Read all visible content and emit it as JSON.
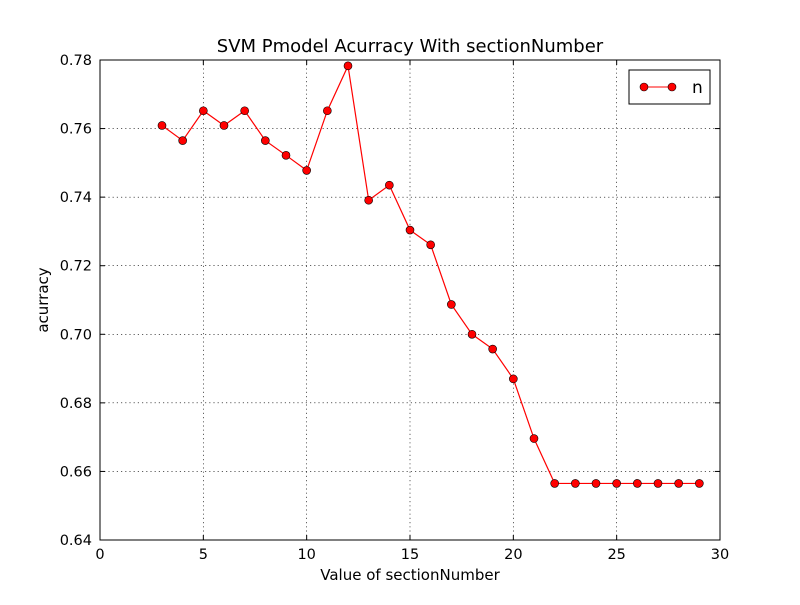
{
  "chart_data": {
    "type": "line",
    "title": "SVM Pmodel Acurracy With sectionNumber",
    "xlabel": "Value of sectionNumber",
    "ylabel": "acurracy",
    "xlim": [
      0,
      30
    ],
    "ylim": [
      0.64,
      0.78
    ],
    "xticks": [
      0,
      5,
      10,
      15,
      20,
      25,
      30
    ],
    "xtick_labels": [
      "0",
      "5",
      "10",
      "15",
      "20",
      "25",
      "30"
    ],
    "yticks": [
      0.64,
      0.66,
      0.68,
      0.7,
      0.72,
      0.74,
      0.76,
      0.78
    ],
    "ytick_labels": [
      "0.64",
      "0.66",
      "0.68",
      "0.70",
      "0.72",
      "0.74",
      "0.76",
      "0.78"
    ],
    "grid": true,
    "grid_style": "dotted",
    "legend_position": "top-right",
    "series": [
      {
        "name": "n",
        "color": "#ff0000",
        "marker": "circle",
        "x": [
          3,
          4,
          5,
          6,
          7,
          8,
          9,
          10,
          11,
          12,
          13,
          14,
          15,
          16,
          17,
          18,
          19,
          20,
          21,
          22,
          23,
          24,
          25,
          26,
          27,
          28,
          29
        ],
        "y": [
          0.7609,
          0.7565,
          0.7652,
          0.7609,
          0.7652,
          0.7565,
          0.7522,
          0.7478,
          0.7652,
          0.7783,
          0.7391,
          0.7435,
          0.7304,
          0.7261,
          0.7087,
          0.7,
          0.6957,
          0.687,
          0.6696,
          0.6565,
          0.6565,
          0.6565,
          0.6565,
          0.6565,
          0.6565,
          0.6565,
          0.6565
        ]
      }
    ]
  }
}
